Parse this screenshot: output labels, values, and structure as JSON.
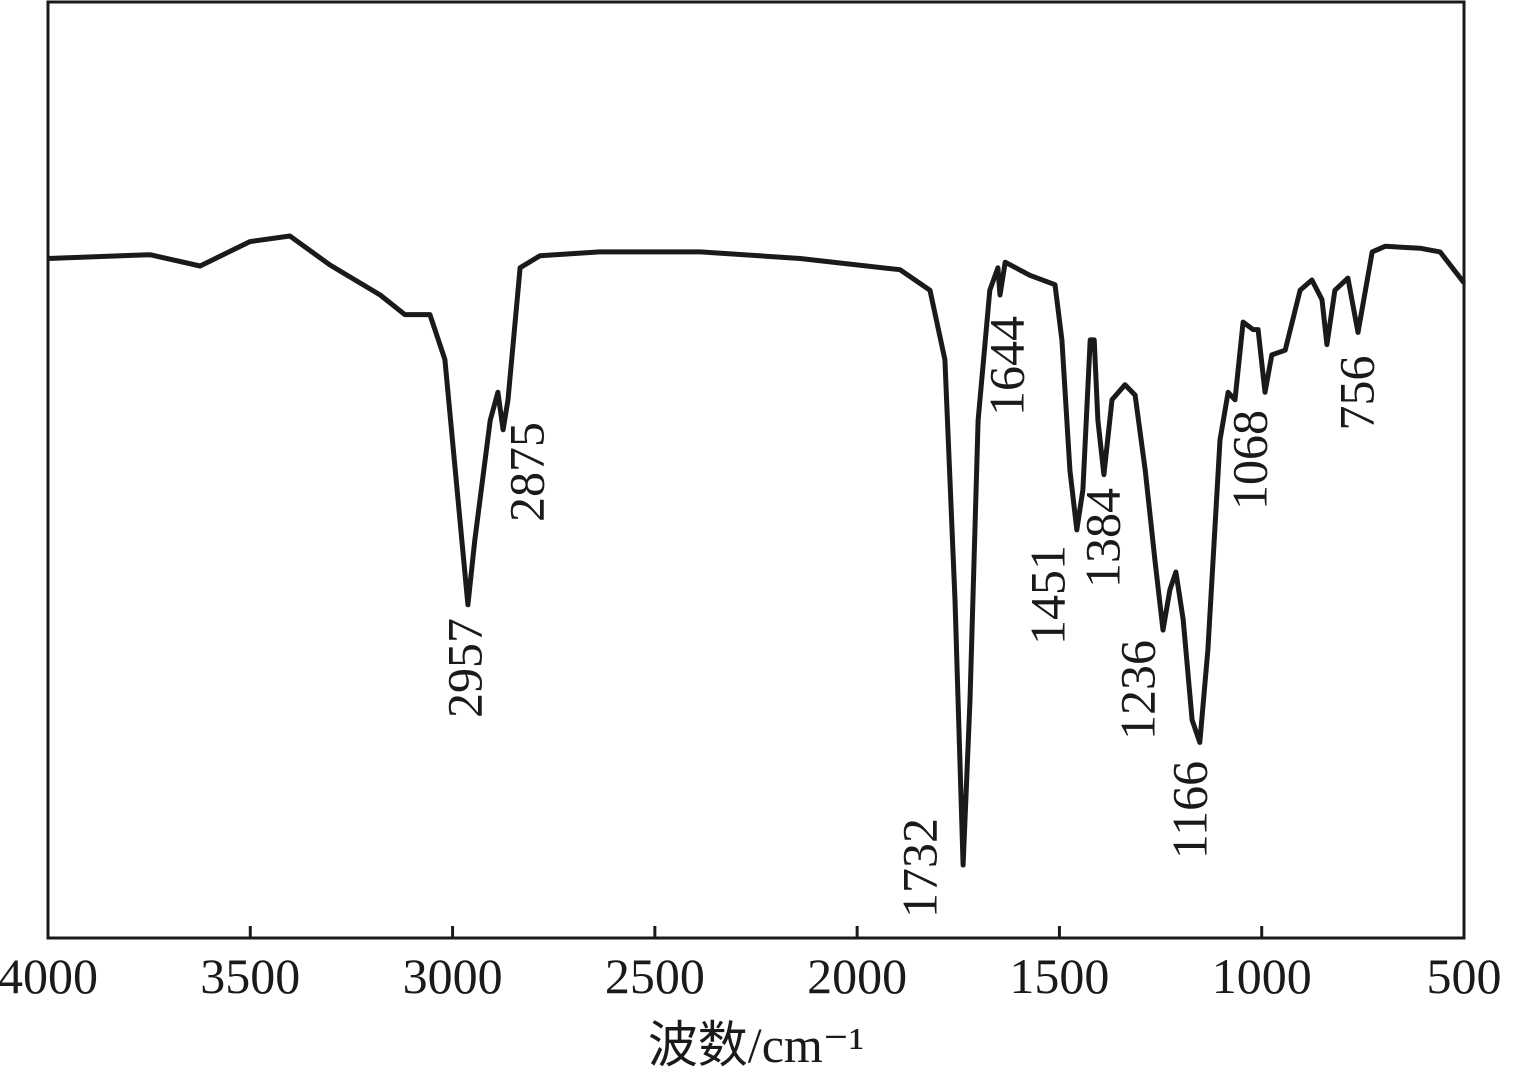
{
  "chart_data": {
    "type": "line",
    "xlabel": "波数/cm⁻¹",
    "x": [
      4000,
      3748,
      3624,
      3501,
      3402,
      3303,
      3179,
      3118,
      3056,
      3019,
      2982,
      2962,
      2945,
      2907,
      2888,
      2875,
      2863,
      2833,
      2784,
      2636,
      2388,
      2141,
      1894,
      1820,
      1783,
      1758,
      1738,
      1721,
      1701,
      1672,
      1652,
      1647,
      1634,
      1573,
      1511,
      1494,
      1474,
      1457,
      1442,
      1424,
      1414,
      1405,
      1390,
      1370,
      1338,
      1313,
      1288,
      1264,
      1244,
      1227,
      1212,
      1194,
      1172,
      1153,
      1133,
      1103,
      1083,
      1066,
      1046,
      1021,
      1009,
      992,
      975,
      942,
      905,
      876,
      851,
      839,
      819,
      787,
      762,
      727,
      695,
      609,
      559,
      500
    ],
    "values": [
      72.6,
      73.0,
      71.8,
      74.4,
      75.0,
      71.9,
      68.7,
      66.6,
      66.6,
      61.8,
      44.7,
      35.6,
      42.5,
      55.3,
      58.3,
      54.3,
      57.5,
      71.6,
      72.9,
      73.3,
      73.3,
      72.6,
      71.4,
      69.2,
      61.8,
      36.1,
      7.8,
      25.4,
      55.3,
      69.2,
      71.6,
      68.7,
      72.2,
      70.8,
      69.8,
      63.9,
      50.0,
      43.6,
      47.9,
      63.9,
      63.9,
      55.3,
      49.5,
      57.5,
      59.1,
      58.0,
      50.0,
      40.4,
      32.9,
      37.2,
      39.1,
      34.0,
      23.3,
      20.9,
      30.8,
      53.2,
      58.3,
      57.5,
      65.8,
      65.0,
      65.0,
      58.3,
      62.3,
      62.8,
      69.2,
      70.3,
      68.2,
      63.4,
      69.2,
      70.5,
      64.7,
      73.3,
      73.9,
      73.7,
      73.3,
      70.0
    ],
    "color": "#1a1a1a",
    "xlim": [
      4000,
      500
    ],
    "ylim": [
      0,
      100
    ],
    "xticks": [
      4000,
      3500,
      3000,
      2500,
      2000,
      1500,
      1000,
      500
    ],
    "annotations": [
      "2957",
      "2875",
      "1732",
      "1644",
      "1451",
      "1384",
      "1236",
      "1166",
      "1068",
      "756"
    ]
  }
}
